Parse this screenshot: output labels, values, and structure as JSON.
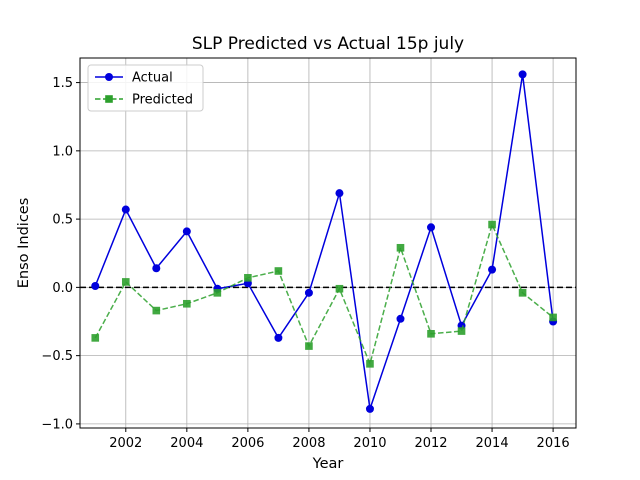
{
  "chart_data": {
    "type": "line",
    "title": "SLP Predicted vs Actual 15p july",
    "xlabel": "Year",
    "ylabel": "Enso Indices",
    "xlim": [
      2000.5,
      2016.75
    ],
    "ylim": [
      -1.03,
      1.68
    ],
    "xticks": [
      2002,
      2004,
      2006,
      2008,
      2010,
      2012,
      2014,
      2016
    ],
    "xtick_labels": [
      "2002",
      "2004",
      "2006",
      "2008",
      "2010",
      "2012",
      "2014",
      "2016"
    ],
    "yticks": [
      -1.0,
      -0.5,
      0.0,
      0.5,
      1.0,
      1.5
    ],
    "ytick_labels": [
      "−1.0",
      "−0.5",
      "0.0",
      "0.5",
      "1.0",
      "1.5"
    ],
    "grid": true,
    "legend_position": "top-left",
    "reference_line": {
      "y": 0,
      "style": "dashed",
      "color": "#000000"
    },
    "x": [
      2001,
      2002,
      2003,
      2004,
      2005,
      2006,
      2007,
      2008,
      2009,
      2010,
      2011,
      2012,
      2013,
      2014,
      2015,
      2016
    ],
    "series": [
      {
        "name": "Actual",
        "color": "#0000dd",
        "marker": "circle",
        "line_style": "solid",
        "values": [
          0.01,
          0.57,
          0.14,
          0.41,
          -0.01,
          0.03,
          -0.37,
          -0.04,
          0.69,
          -0.89,
          -0.23,
          0.44,
          -0.28,
          0.13,
          1.56,
          -0.25
        ]
      },
      {
        "name": "Predicted",
        "color": "#2ca02c",
        "marker": "square",
        "line_style": "dashed",
        "values": [
          -0.37,
          0.04,
          -0.17,
          -0.12,
          -0.04,
          0.07,
          0.12,
          -0.43,
          -0.01,
          -0.56,
          0.29,
          -0.34,
          -0.32,
          0.46,
          -0.04,
          -0.22
        ]
      }
    ]
  }
}
